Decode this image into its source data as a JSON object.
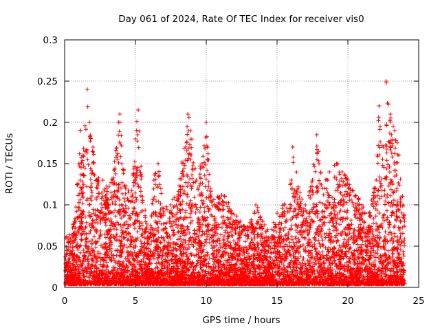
{
  "chart_data": {
    "type": "scatter",
    "title": "Day 061 of 2024, Rate Of TEC Index for receiver vis0",
    "xlabel": "GPS time / hours",
    "ylabel": "ROTI / TECUs",
    "xlim": [
      0,
      25
    ],
    "ylim": [
      0,
      0.3
    ],
    "xticks": [
      0,
      5,
      10,
      15,
      20,
      25
    ],
    "yticks": [
      0,
      0.05,
      0.1,
      0.15,
      0.2,
      0.25,
      0.3
    ],
    "xtick_labels": [
      "0",
      "5",
      "10",
      "15",
      "20",
      "25"
    ],
    "ytick_labels": [
      "0",
      "0.05",
      "0.1",
      "0.15",
      "0.2",
      "0.25",
      "0.3"
    ],
    "grid": true,
    "marker": "+",
    "series": [
      {
        "name": "ROTI",
        "color": "#ff0000",
        "envelope_note": "approximate upper envelope of ROTI values (hour, ROTI); thousands of points lie below",
        "peaks": [
          [
            0.3,
            0.06
          ],
          [
            0.7,
            0.08
          ],
          [
            1.0,
            0.15
          ],
          [
            1.1,
            0.19
          ],
          [
            1.3,
            0.16
          ],
          [
            1.6,
            0.24
          ],
          [
            1.75,
            0.2
          ],
          [
            2.0,
            0.17
          ],
          [
            2.3,
            0.13
          ],
          [
            2.7,
            0.13
          ],
          [
            3.0,
            0.12
          ],
          [
            3.4,
            0.13
          ],
          [
            3.8,
            0.2
          ],
          [
            3.9,
            0.21
          ],
          [
            4.3,
            0.12
          ],
          [
            4.7,
            0.11
          ],
          [
            5.0,
            0.18
          ],
          [
            5.2,
            0.215
          ],
          [
            5.5,
            0.11
          ],
          [
            6.0,
            0.06
          ],
          [
            6.3,
            0.13
          ],
          [
            6.6,
            0.15
          ],
          [
            7.0,
            0.09
          ],
          [
            7.5,
            0.1
          ],
          [
            8.0,
            0.11
          ],
          [
            8.3,
            0.15
          ],
          [
            8.7,
            0.21
          ],
          [
            8.9,
            0.19
          ],
          [
            9.3,
            0.13
          ],
          [
            9.7,
            0.15
          ],
          [
            10.0,
            0.2
          ],
          [
            10.3,
            0.12
          ],
          [
            10.8,
            0.11
          ],
          [
            11.3,
            0.11
          ],
          [
            11.8,
            0.09
          ],
          [
            12.3,
            0.08
          ],
          [
            12.7,
            0.07
          ],
          [
            13.0,
            0.07
          ],
          [
            13.5,
            0.1
          ],
          [
            14.0,
            0.08
          ],
          [
            14.5,
            0.06
          ],
          [
            15.0,
            0.09
          ],
          [
            15.5,
            0.1
          ],
          [
            16.0,
            0.13
          ],
          [
            16.1,
            0.17
          ],
          [
            16.5,
            0.12
          ],
          [
            17.0,
            0.1
          ],
          [
            17.5,
            0.13
          ],
          [
            17.8,
            0.185
          ],
          [
            18.2,
            0.12
          ],
          [
            18.7,
            0.14
          ],
          [
            19.2,
            0.15
          ],
          [
            19.6,
            0.14
          ],
          [
            20.0,
            0.13
          ],
          [
            20.5,
            0.11
          ],
          [
            21.0,
            0.1
          ],
          [
            21.5,
            0.09
          ],
          [
            22.0,
            0.13
          ],
          [
            22.2,
            0.22
          ],
          [
            22.5,
            0.17
          ],
          [
            22.7,
            0.25
          ],
          [
            23.0,
            0.21
          ],
          [
            23.3,
            0.19
          ],
          [
            23.6,
            0.16
          ],
          [
            23.9,
            0.1
          ],
          [
            24.0,
            0.08
          ]
        ]
      }
    ]
  }
}
